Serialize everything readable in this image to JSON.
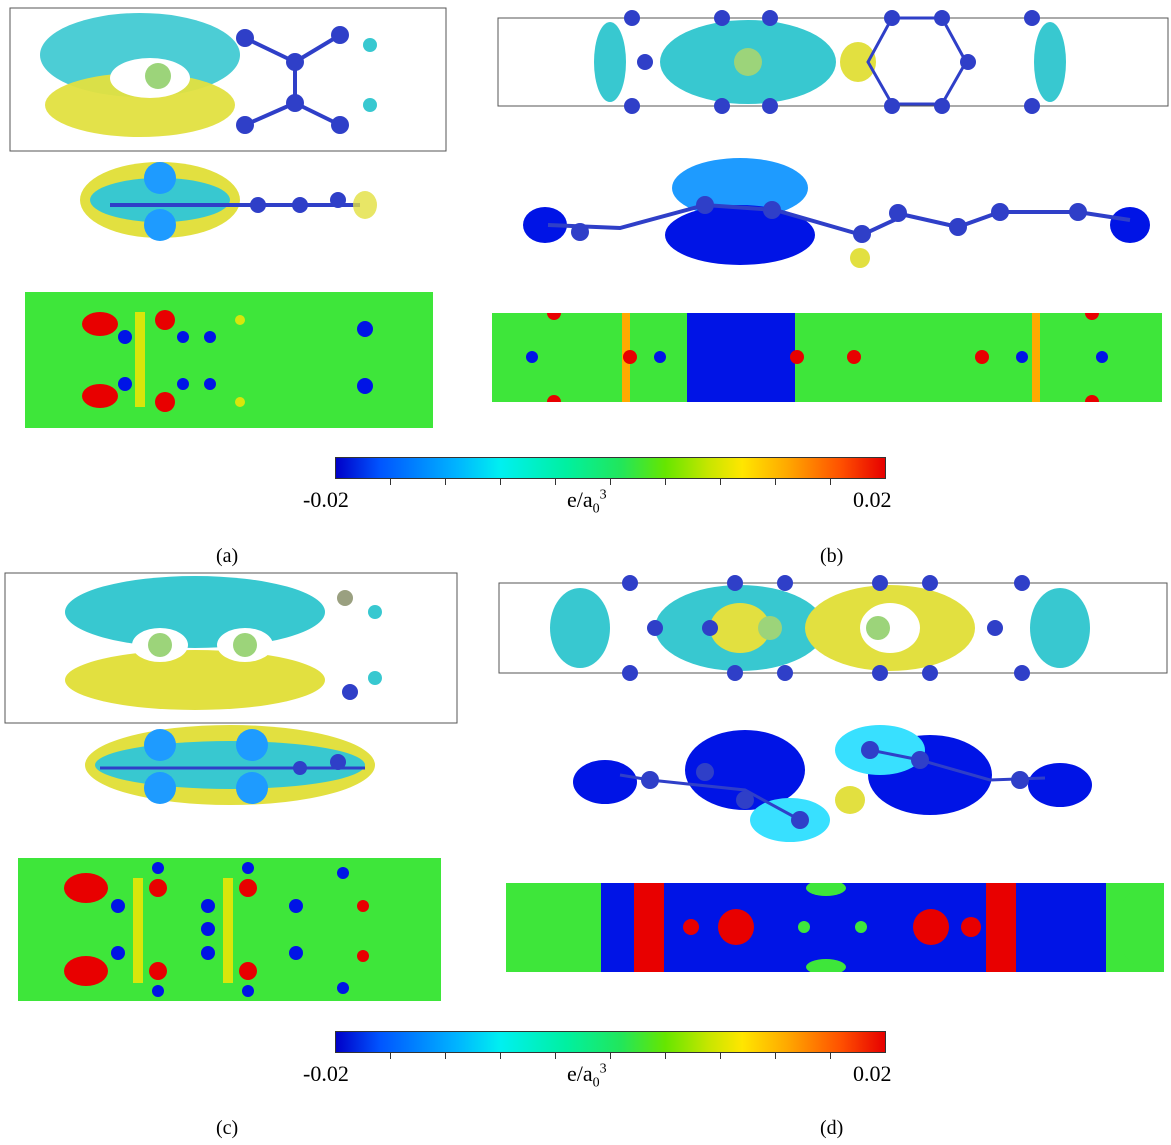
{
  "panels": [
    {
      "label": "(a)"
    },
    {
      "label": "(b)"
    },
    {
      "label": "(c)"
    },
    {
      "label": "(d)"
    }
  ],
  "colorbars": [
    {
      "min_label": "-0.02",
      "unit_label": "e/a",
      "unit_sub": "0",
      "unit_sup": "3",
      "max_label": "0.02"
    },
    {
      "min_label": "-0.02",
      "unit_label": "e/a",
      "unit_sub": "0",
      "unit_sup": "3",
      "max_label": "0.02"
    }
  ],
  "colors": {
    "atom_blue": "#2f3fc8",
    "dopant_green": "#9cd47a",
    "iso_cyan": "#38c8d0",
    "iso_yellow": "#e2e040",
    "iso_blue": "#1e4fff",
    "map_green": "#3ee63a",
    "map_blue": "#0014e6",
    "map_red": "#e80000"
  }
}
